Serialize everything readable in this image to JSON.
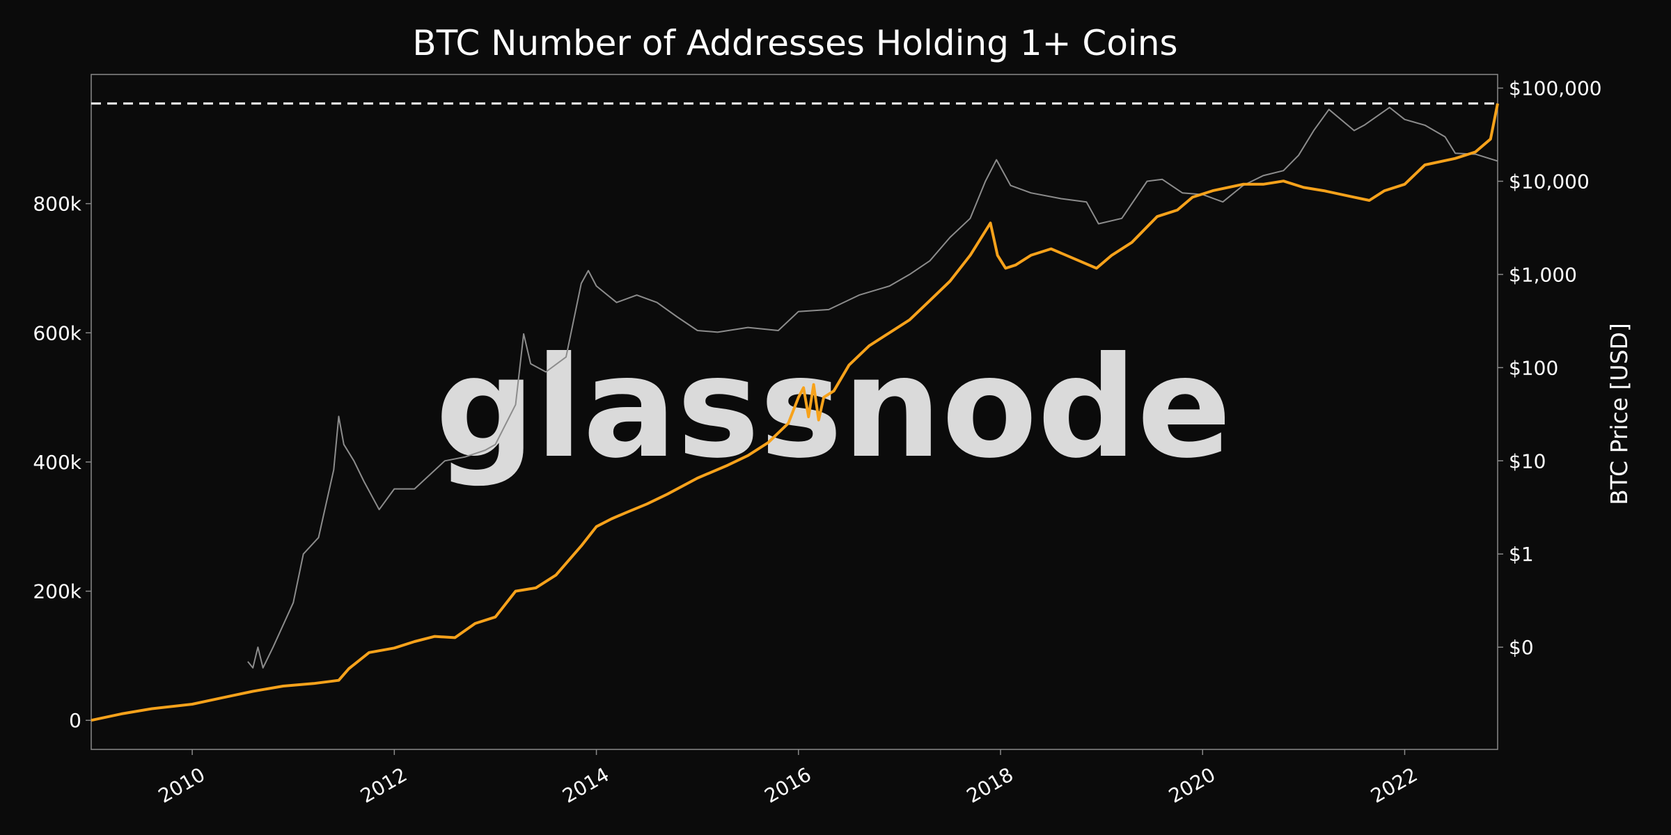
{
  "colors": {
    "background": "#0b0b0b",
    "addresses_line": "#f7a21b",
    "price_line": "#8c8c8c",
    "ath_line": "#ffffff",
    "watermark": "#5e5e5e",
    "frame": "#8a8a8a",
    "text": "#ffffff"
  },
  "chart_data": {
    "type": "line",
    "title": "BTC Number of Addresses Holding 1+ Coins",
    "watermark": "glassnode",
    "xlim": [
      2009.0,
      2022.92
    ],
    "x_ticks": [
      2010,
      2012,
      2014,
      2016,
      2018,
      2020,
      2022
    ],
    "x_tick_labels": [
      "2010",
      "2012",
      "2014",
      "2016",
      "2018",
      "2020",
      "2022"
    ],
    "left_axis": {
      "label": "",
      "ylim": [
        -45000,
        1000000
      ],
      "ticks": [
        0,
        200000,
        400000,
        600000,
        800000
      ],
      "tick_labels": [
        "0",
        "200k",
        "400k",
        "600k",
        "800k"
      ]
    },
    "right_axis": {
      "label": "BTC Price [USD]",
      "scale": "log",
      "ylim": [
        0.008,
        140000
      ],
      "ticks": [
        0.1,
        1,
        10,
        100,
        1000,
        10000,
        100000
      ],
      "tick_labels": [
        "$0",
        "$1",
        "$10",
        "$100",
        "$1,000",
        "$10,000",
        "$100,000"
      ]
    },
    "ath_reference": {
      "axis": "left",
      "value": 955000,
      "style": "dashed"
    },
    "series": [
      {
        "name": "Addresses Holding 1+ Coins",
        "axis": "left",
        "x": [
          2009.0,
          2009.3,
          2009.6,
          2010.0,
          2010.3,
          2010.6,
          2010.9,
          2011.2,
          2011.45,
          2011.55,
          2011.75,
          2012.0,
          2012.2,
          2012.4,
          2012.6,
          2012.8,
          2013.0,
          2013.2,
          2013.4,
          2013.6,
          2013.85,
          2014.0,
          2014.15,
          2014.3,
          2014.5,
          2014.7,
          2015.0,
          2015.3,
          2015.5,
          2015.7,
          2015.9,
          2016.0,
          2016.05,
          2016.1,
          2016.15,
          2016.2,
          2016.25,
          2016.35,
          2016.5,
          2016.7,
          2016.9,
          2017.1,
          2017.3,
          2017.5,
          2017.7,
          2017.9,
          2017.97,
          2018.05,
          2018.15,
          2018.3,
          2018.5,
          2018.8,
          2018.95,
          2019.1,
          2019.3,
          2019.55,
          2019.75,
          2019.9,
          2020.1,
          2020.4,
          2020.6,
          2020.8,
          2021.0,
          2021.2,
          2021.5,
          2021.65,
          2021.8,
          2022.0,
          2022.2,
          2022.5,
          2022.7,
          2022.85,
          2022.92
        ],
        "values": [
          0,
          10000,
          18000,
          25000,
          35000,
          45000,
          53000,
          57000,
          62000,
          80000,
          105000,
          112000,
          122000,
          130000,
          128000,
          150000,
          160000,
          200000,
          205000,
          225000,
          270000,
          300000,
          312000,
          322000,
          335000,
          350000,
          375000,
          395000,
          410000,
          430000,
          460000,
          500000,
          515000,
          470000,
          520000,
          465000,
          500000,
          510000,
          550000,
          580000,
          600000,
          620000,
          650000,
          680000,
          720000,
          770000,
          720000,
          700000,
          705000,
          720000,
          730000,
          710000,
          700000,
          720000,
          740000,
          780000,
          790000,
          810000,
          820000,
          830000,
          830000,
          835000,
          825000,
          820000,
          810000,
          805000,
          820000,
          830000,
          860000,
          870000,
          880000,
          900000,
          955000
        ]
      },
      {
        "name": "BTC Price",
        "axis": "right",
        "x": [
          2010.55,
          2010.6,
          2010.65,
          2010.7,
          2010.8,
          2011.0,
          2011.1,
          2011.25,
          2011.4,
          2011.45,
          2011.5,
          2011.6,
          2011.7,
          2011.85,
          2012.0,
          2012.2,
          2012.5,
          2012.7,
          2012.9,
          2013.0,
          2013.2,
          2013.28,
          2013.35,
          2013.5,
          2013.7,
          2013.85,
          2013.92,
          2014.0,
          2014.2,
          2014.4,
          2014.6,
          2014.8,
          2015.0,
          2015.2,
          2015.5,
          2015.8,
          2016.0,
          2016.3,
          2016.6,
          2016.9,
          2017.1,
          2017.3,
          2017.5,
          2017.7,
          2017.85,
          2017.96,
          2018.1,
          2018.3,
          2018.6,
          2018.85,
          2018.97,
          2019.2,
          2019.45,
          2019.6,
          2019.8,
          2020.0,
          2020.2,
          2020.4,
          2020.6,
          2020.8,
          2020.95,
          2021.1,
          2021.25,
          2021.5,
          2021.6,
          2021.85,
          2022.0,
          2022.2,
          2022.4,
          2022.5,
          2022.7,
          2022.92
        ],
        "values": [
          0.07,
          0.06,
          0.1,
          0.06,
          0.1,
          0.3,
          1,
          1.5,
          8,
          30,
          15,
          10,
          6,
          3,
          5,
          5,
          10,
          11,
          13,
          15,
          40,
          230,
          110,
          90,
          130,
          800,
          1100,
          750,
          500,
          600,
          500,
          350,
          250,
          240,
          270,
          250,
          400,
          420,
          600,
          750,
          1000,
          1400,
          2500,
          4000,
          10000,
          17000,
          9000,
          7500,
          6500,
          6000,
          3500,
          4000,
          10000,
          10500,
          7500,
          7200,
          6000,
          9000,
          11500,
          13000,
          19000,
          35000,
          59000,
          35000,
          40000,
          62000,
          46000,
          40000,
          30000,
          20000,
          19500,
          16500
        ]
      }
    ]
  }
}
